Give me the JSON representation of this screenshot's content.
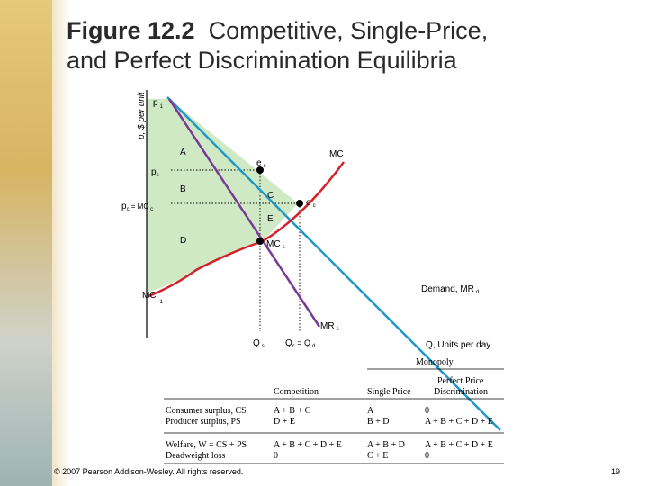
{
  "title": {
    "figure_number": "Figure 12.2",
    "text": "Competitive, Single-Price,",
    "line2": "and Perfect Discrimination Equilibria"
  },
  "diagram": {
    "y_axis_label": "p, $ per unit",
    "x_axis_label": "Q, Units per day",
    "price_labels": {
      "p1": "p",
      "p1_sub": "1",
      "ps": "p",
      "ps_sub": "s",
      "pc": "p",
      "pc_sub": "c",
      "pc_eq": " = MC",
      "pc_eq_sub": "c",
      "mc1": "MC",
      "mc1_sub": "1"
    },
    "curve_labels": {
      "mc": "MC",
      "demand": "Demand, MR",
      "demand_sub": "d",
      "mrs": "MR",
      "mrs_sub": "s",
      "mcs": "MC",
      "mcs_sub": "s"
    },
    "point_labels": {
      "es": "e",
      "es_sub": "s",
      "ec": "e",
      "ec_sub": "c"
    },
    "area_labels": {
      "a": "A",
      "b": "B",
      "c": "C",
      "d": "D",
      "e": "E"
    },
    "quantity_labels": {
      "qs": "Q",
      "qs_sub": "s",
      "qc": "Q",
      "qc_sub": "c",
      "qc_eq": " = Q",
      "qc_eq_sub": "d"
    },
    "colors": {
      "demand": "#1f97c7",
      "mc": "#d5212a",
      "mr": "#7a3a98",
      "fill": "#cfe9c5"
    }
  },
  "table": {
    "monopoly_header": "Monopoly",
    "headers": [
      "Competition",
      "Single Price",
      "Perfect Price",
      "Discrimination"
    ],
    "rows": [
      {
        "label": "Consumer surplus, CS",
        "competition": "A + B + C",
        "single": "A",
        "perfect": "0"
      },
      {
        "label": "Producer surplus, PS",
        "competition": "D + E",
        "single": "B + D",
        "perfect": "A + B + C + D + E"
      },
      {
        "label": "Welfare, W = CS + PS",
        "competition": "A + B + C + D + E",
        "single": "A + B + D",
        "perfect": "A + B + C + D + E"
      },
      {
        "label": "Deadweight loss",
        "competition": "0",
        "single": "C + E",
        "perfect": "0"
      }
    ]
  },
  "footer": "© 2007 Pearson Addison-Wesley. All rights reserved.",
  "page_number": "19"
}
